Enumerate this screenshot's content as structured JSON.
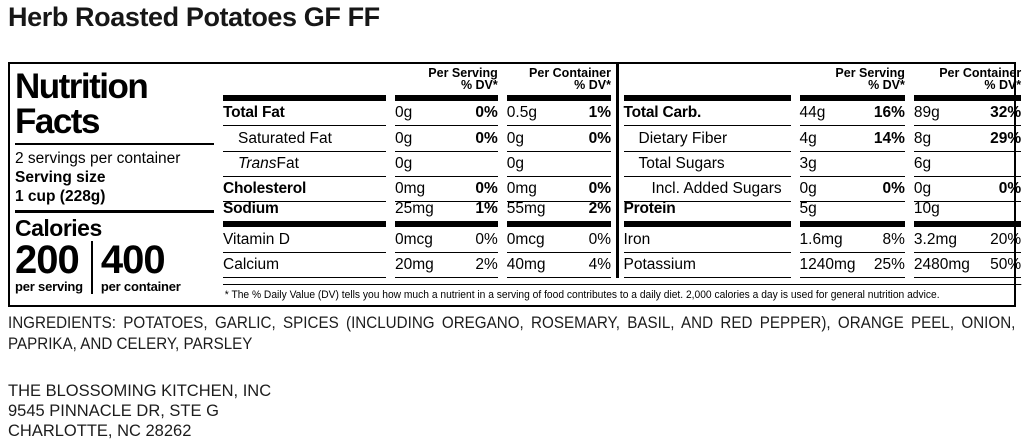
{
  "product_title": "Herb Roasted Potatoes GF FF",
  "nutrition_facts": {
    "title_line1": "Nutrition",
    "title_line2": "Facts",
    "servings_per_container": "2 servings per container",
    "serving_size_label": "Serving size",
    "serving_size_value": "1 cup (228g)",
    "calories_label": "Calories",
    "calories_per_serving": "200",
    "calories_per_serving_caption": "per serving",
    "calories_per_container": "400",
    "calories_per_container_caption": "per container",
    "column_headers": {
      "per_serving": "Per Serving",
      "per_container": "Per Container",
      "daily_value": "% DV*"
    },
    "left_table_rows": [
      {
        "name": "Total Fat",
        "bold": true,
        "indent": 0,
        "per_serving_amount": "0g",
        "per_serving_dv": "0%",
        "per_container_amount": "0.5g",
        "per_container_dv": "1%",
        "dv_bold": true
      },
      {
        "name": "Saturated Fat",
        "bold": false,
        "indent": 1,
        "per_serving_amount": "0g",
        "per_serving_dv": "0%",
        "per_container_amount": "0g",
        "per_container_dv": "0%",
        "dv_bold": true
      },
      {
        "name": "Trans Fat",
        "italic_prefix": "Trans",
        "bold": false,
        "indent": 1,
        "per_serving_amount": "0g",
        "per_serving_dv": "",
        "per_container_amount": "0g",
        "per_container_dv": ""
      },
      {
        "name": "Cholesterol",
        "bold": true,
        "indent": 0,
        "per_serving_amount": "0mg",
        "per_serving_dv": "0%",
        "per_container_amount": "0mg",
        "per_container_dv": "0%",
        "dv_bold": true
      },
      {
        "name": "Sodium",
        "bold": true,
        "indent": 0,
        "per_serving_amount": "25mg",
        "per_serving_dv": "1%",
        "per_container_amount": "55mg",
        "per_container_dv": "2%",
        "dv_bold": true,
        "thick_after": true
      },
      {
        "name": "Vitamin D",
        "bold": false,
        "indent": 0,
        "per_serving_amount": "0mcg",
        "per_serving_dv": "0%",
        "per_container_amount": "0mcg",
        "per_container_dv": "0%",
        "dv_bold": false
      },
      {
        "name": "Calcium",
        "bold": false,
        "indent": 0,
        "per_serving_amount": "20mg",
        "per_serving_dv": "2%",
        "per_container_amount": "40mg",
        "per_container_dv": "4%",
        "dv_bold": false
      }
    ],
    "right_table_rows": [
      {
        "name": "Total Carb.",
        "bold": true,
        "indent": 0,
        "per_serving_amount": "44g",
        "per_serving_dv": "16%",
        "per_container_amount": "89g",
        "per_container_dv": "32%",
        "dv_bold": true
      },
      {
        "name": "Dietary Fiber",
        "bold": false,
        "indent": 1,
        "per_serving_amount": "4g",
        "per_serving_dv": "14%",
        "per_container_amount": "8g",
        "per_container_dv": "29%",
        "dv_bold": true
      },
      {
        "name": "Total Sugars",
        "bold": false,
        "indent": 1,
        "per_serving_amount": "3g",
        "per_serving_dv": "",
        "per_container_amount": "6g",
        "per_container_dv": ""
      },
      {
        "name": "Incl. Added Sugars",
        "bold": false,
        "indent": 2,
        "per_serving_amount": "0g",
        "per_serving_dv": "0%",
        "per_container_amount": "0g",
        "per_container_dv": "0%",
        "dv_bold": true
      },
      {
        "name": "Protein",
        "bold": true,
        "indent": 0,
        "per_serving_amount": "5g",
        "per_serving_dv": "",
        "per_container_amount": "10g",
        "per_container_dv": "",
        "thick_after": true
      },
      {
        "name": "Iron",
        "bold": false,
        "indent": 0,
        "per_serving_amount": "1.6mg",
        "per_serving_dv": "8%",
        "per_container_amount": "3.2mg",
        "per_container_dv": "20%",
        "dv_bold": false
      },
      {
        "name": "Potassium",
        "bold": false,
        "indent": 0,
        "per_serving_amount": "1240mg",
        "per_serving_dv": "25%",
        "per_container_amount": "2480mg",
        "per_container_dv": "50%",
        "dv_bold": false
      }
    ],
    "footnote": "* The % Daily Value (DV) tells you how much a nutrient in a serving of food contributes to a daily diet. 2,000 calories a day is used for general nutrition advice."
  },
  "ingredients": "INGREDIENTS: POTATOES, GARLIC, SPICES (INCLUDING OREGANO, ROSEMARY, BASIL, AND RED PEPPER), ORANGE PEEL, ONION, PAPRIKA, AND CELERY, PARSLEY",
  "manufacturer": {
    "name": "THE BLOSSOMING KITCHEN, INC",
    "address": "9545 PINNACLE DR, STE G",
    "city_state_zip": "CHARLOTTE, NC 28262"
  }
}
